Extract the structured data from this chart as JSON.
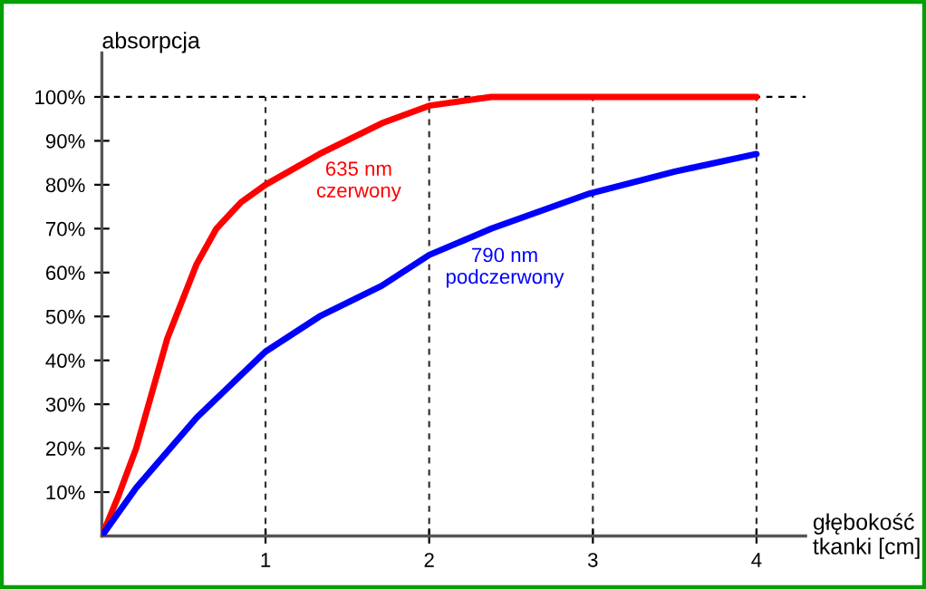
{
  "chart_data": {
    "type": "line",
    "xlabel": "głębokość\ntkanki [cm]",
    "ylabel": "absorpcja",
    "xlim": [
      0,
      4.3
    ],
    "ylim": [
      0,
      110
    ],
    "xticks": [
      1,
      2,
      3,
      4
    ],
    "yticks": [
      {
        "value": 10,
        "label": "10%"
      },
      {
        "value": 20,
        "label": "20%"
      },
      {
        "value": 30,
        "label": "30%"
      },
      {
        "value": 40,
        "label": "40%"
      },
      {
        "value": 50,
        "label": "50%"
      },
      {
        "value": 60,
        "label": "60%"
      },
      {
        "value": 70,
        "label": "70%"
      },
      {
        "value": 80,
        "label": "80%"
      },
      {
        "value": 90,
        "label": "90%"
      },
      {
        "value": 100,
        "label": "100%"
      }
    ],
    "grid": "x",
    "line_style": "solid",
    "marker": "none",
    "ref_lines": [
      {
        "axis": "y",
        "value": 100,
        "line_style": "dashed",
        "color": "#000000"
      }
    ],
    "series": [
      {
        "name": "635 nm\nczerwony",
        "color": "#ff0000",
        "x": [
          0,
          0.1,
          0.21,
          0.4,
          0.58,
          0.7,
          0.85,
          1.0,
          1.33,
          1.71,
          2.0,
          2.38,
          3.0,
          4.0
        ],
        "values": [
          0,
          9,
          20,
          45,
          62,
          70,
          76,
          80,
          87,
          94,
          98,
          100,
          100,
          100
        ]
      },
      {
        "name": "790 nm\npodczerwony",
        "color": "#0000ff",
        "x": [
          0,
          0.21,
          0.58,
          1.0,
          1.33,
          1.71,
          2.0,
          2.38,
          2.98,
          3.5,
          4.0
        ],
        "values": [
          0,
          11,
          27,
          42,
          50,
          57,
          64,
          70,
          78,
          83,
          87
        ]
      }
    ]
  }
}
